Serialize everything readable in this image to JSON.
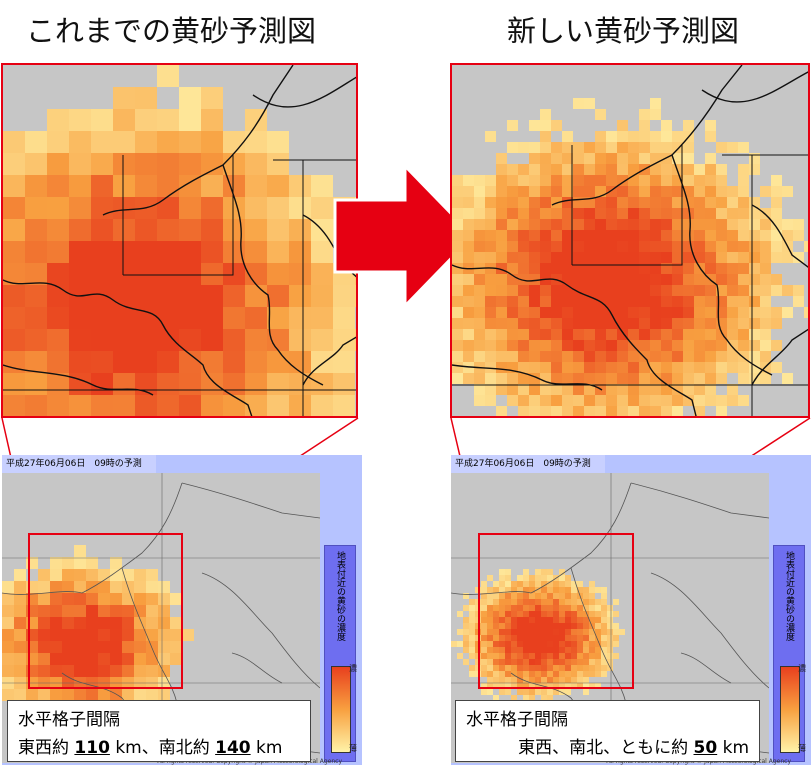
{
  "headings": {
    "old": "これまでの黄砂予測図",
    "new": "新しい黄砂予測図"
  },
  "mini_panels": {
    "header_label": "平成27年06月06日　09時の予測",
    "legend_title": "地表付近の黄砂の濃度",
    "legend_max": "濃",
    "legend_min": "薄",
    "copyright": "All rights reserved. Copyright © Japan Meteorological Agency"
  },
  "specs": {
    "old": {
      "title": "水平格子間隔",
      "ew_label": "東西約",
      "ew_value": "110",
      "unit1": "km、南北約",
      "ns_value": "140",
      "unit2": "km"
    },
    "new": {
      "title": "水平格子間隔",
      "prefix": "東西、南北、ともに約",
      "value": "50",
      "unit": "km"
    }
  },
  "colors": {
    "land": "#c6c6c6",
    "frame": "#e60012",
    "dust_high": "#e8401e",
    "dust_mid": "#f8a040",
    "dust_low": "#fff3a8",
    "panel_bg": "#b6c3ff"
  },
  "icons": {
    "arrow": "right-arrow-icon"
  }
}
